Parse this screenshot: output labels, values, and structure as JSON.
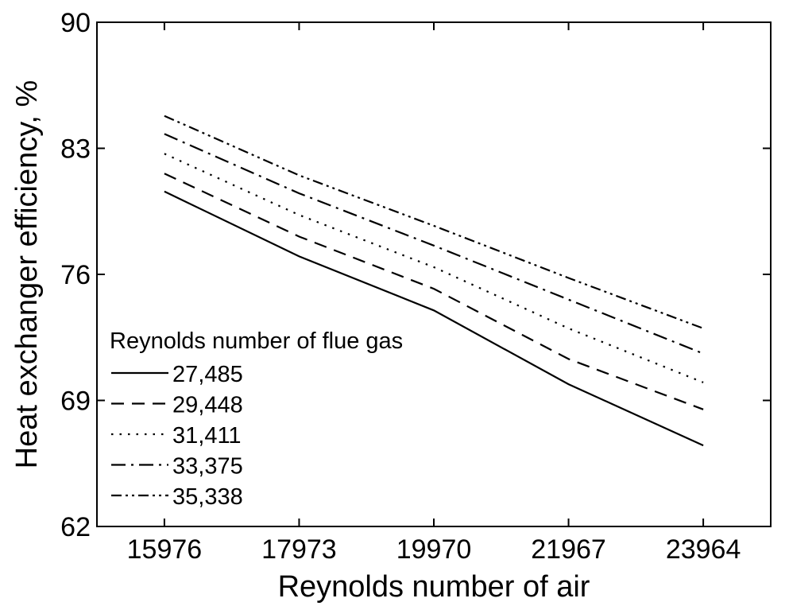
{
  "chart_data": {
    "type": "line",
    "xlabel": "Reynolds number of air",
    "ylabel": "Heat exchanger efficiency, %",
    "x": [
      15976,
      17973,
      19970,
      21967,
      23964
    ],
    "x_tick_labels": [
      "15976",
      "17973",
      "19970",
      "21967",
      "23964"
    ],
    "xlim": [
      14976,
      24964
    ],
    "y_ticks": [
      62,
      69,
      76,
      83,
      90
    ],
    "ylim": [
      62,
      90
    ],
    "grid": false,
    "legend": {
      "title": "Reynolds number of flue gas",
      "placement": "lower-left"
    },
    "series": [
      {
        "name": "27,485",
        "dash": "solid",
        "values": [
          80.6,
          77.0,
          74.0,
          69.9,
          66.5
        ]
      },
      {
        "name": "29,448",
        "dash": "dashed",
        "values": [
          81.6,
          78.1,
          75.2,
          71.3,
          68.5
        ]
      },
      {
        "name": "31,411",
        "dash": "dotted",
        "values": [
          82.7,
          79.3,
          76.4,
          73.0,
          70.0
        ]
      },
      {
        "name": "33,375",
        "dash": "dashdot",
        "values": [
          83.8,
          80.5,
          77.6,
          74.6,
          71.6
        ]
      },
      {
        "name": "35,338",
        "dash": "dashdotdot",
        "values": [
          84.8,
          81.5,
          78.7,
          75.8,
          73.0
        ]
      }
    ]
  }
}
